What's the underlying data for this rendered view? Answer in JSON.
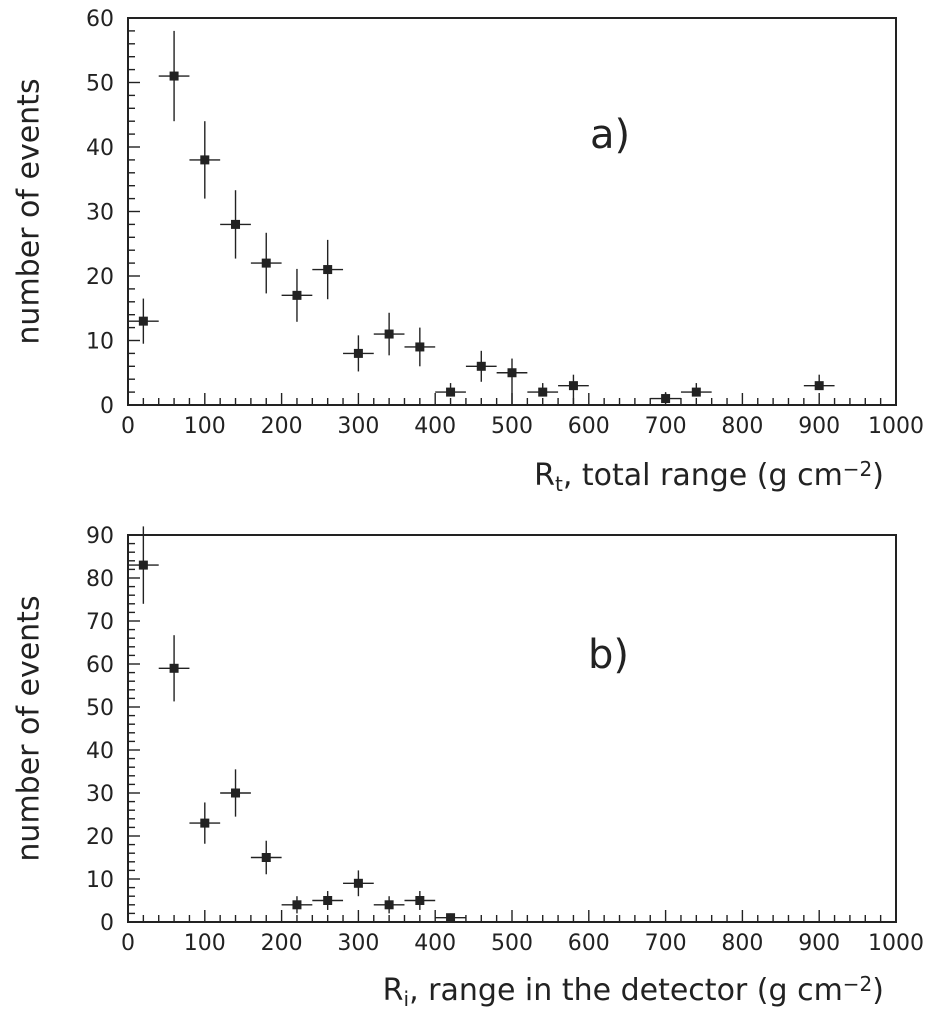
{
  "chart_data": [
    {
      "type": "scatter",
      "panel_label": "a)",
      "xlabel_symbol": "R",
      "xlabel_sub": "t",
      "xlabel_text": ", total range (g cm",
      "xlabel_sup": "−2",
      "xlabel_tail": ")",
      "ylabel": "number of events",
      "xlim": [
        0,
        1000
      ],
      "ylim": [
        0,
        60
      ],
      "xticks": [
        0,
        100,
        200,
        300,
        400,
        500,
        600,
        700,
        800,
        900,
        1000
      ],
      "yticks": [
        0,
        10,
        20,
        30,
        40,
        50,
        60
      ],
      "points": [
        {
          "x": 20,
          "y": 13,
          "xerr": 20,
          "yerr": [
            3.5,
            3.5
          ]
        },
        {
          "x": 60,
          "y": 51,
          "xerr": 20,
          "yerr": [
            7,
            7
          ]
        },
        {
          "x": 100,
          "y": 38,
          "xerr": 20,
          "yerr": [
            6,
            6
          ]
        },
        {
          "x": 140,
          "y": 28,
          "xerr": 20,
          "yerr": [
            5.3,
            5.3
          ]
        },
        {
          "x": 180,
          "y": 22,
          "xerr": 20,
          "yerr": [
            4.7,
            4.7
          ]
        },
        {
          "x": 220,
          "y": 17,
          "xerr": 20,
          "yerr": [
            4.1,
            4.1
          ]
        },
        {
          "x": 260,
          "y": 21,
          "xerr": 20,
          "yerr": [
            4.6,
            4.6
          ]
        },
        {
          "x": 300,
          "y": 8,
          "xerr": 20,
          "yerr": [
            2.8,
            2.8
          ]
        },
        {
          "x": 340,
          "y": 11,
          "xerr": 20,
          "yerr": [
            3.3,
            3.3
          ]
        },
        {
          "x": 380,
          "y": 9,
          "xerr": 20,
          "yerr": [
            3,
            3
          ]
        },
        {
          "x": 420,
          "y": 2,
          "xerr": 20,
          "yerr": [
            0,
            1.4
          ]
        },
        {
          "x": 460,
          "y": 6,
          "xerr": 20,
          "yerr": [
            2.4,
            2.4
          ]
        },
        {
          "x": 500,
          "y": 5,
          "xerr": 20,
          "yerr": [
            5,
            2.2
          ]
        },
        {
          "x": 540,
          "y": 2,
          "xerr": 20,
          "yerr": [
            0,
            1.4
          ]
        },
        {
          "x": 580,
          "y": 3,
          "xerr": 20,
          "yerr": [
            3,
            1.7
          ]
        },
        {
          "x": 700,
          "y": 1,
          "xerr": 20,
          "yerr": [
            0,
            1
          ]
        },
        {
          "x": 740,
          "y": 2,
          "xerr": 20,
          "yerr": [
            0,
            1.4
          ]
        },
        {
          "x": 900,
          "y": 3,
          "xerr": 20,
          "yerr": [
            0,
            1.7
          ]
        }
      ]
    },
    {
      "type": "scatter",
      "panel_label": "b)",
      "xlabel_symbol": "R",
      "xlabel_sub": "i",
      "xlabel_text": ", range in the detector (g cm",
      "xlabel_sup": "−2",
      "xlabel_tail": ")",
      "ylabel": "number of events",
      "xlim": [
        0,
        1000
      ],
      "ylim": [
        0,
        90
      ],
      "xticks": [
        0,
        100,
        200,
        300,
        400,
        500,
        600,
        700,
        800,
        900,
        1000
      ],
      "yticks": [
        0,
        10,
        20,
        30,
        40,
        50,
        60,
        70,
        80,
        90
      ],
      "points": [
        {
          "x": 20,
          "y": 83,
          "xerr": 20,
          "yerr": [
            9,
            9
          ]
        },
        {
          "x": 60,
          "y": 59,
          "xerr": 20,
          "yerr": [
            7.7,
            7.7
          ]
        },
        {
          "x": 100,
          "y": 23,
          "xerr": 20,
          "yerr": [
            4.8,
            4.8
          ]
        },
        {
          "x": 140,
          "y": 30,
          "xerr": 20,
          "yerr": [
            5.5,
            5.5
          ]
        },
        {
          "x": 180,
          "y": 15,
          "xerr": 20,
          "yerr": [
            3.9,
            3.9
          ]
        },
        {
          "x": 220,
          "y": 4,
          "xerr": 20,
          "yerr": [
            2,
            2
          ]
        },
        {
          "x": 260,
          "y": 5,
          "xerr": 20,
          "yerr": [
            2.2,
            2.2
          ]
        },
        {
          "x": 300,
          "y": 9,
          "xerr": 20,
          "yerr": [
            3,
            3
          ]
        },
        {
          "x": 340,
          "y": 4,
          "xerr": 20,
          "yerr": [
            2,
            2
          ]
        },
        {
          "x": 380,
          "y": 5,
          "xerr": 20,
          "yerr": [
            2.2,
            2.2
          ]
        },
        {
          "x": 420,
          "y": 1,
          "xerr": 20,
          "yerr": [
            0,
            1
          ]
        }
      ]
    }
  ]
}
